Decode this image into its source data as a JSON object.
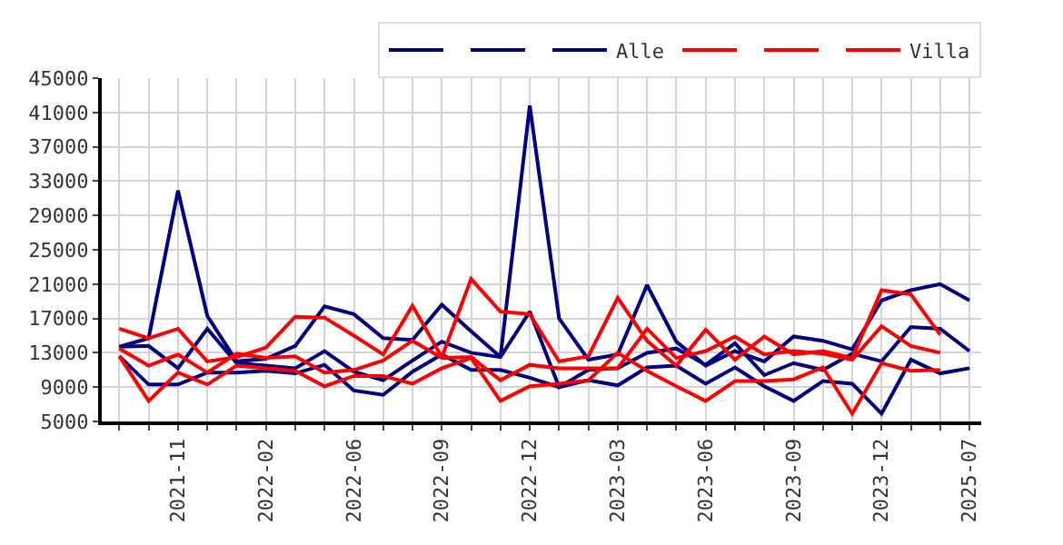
{
  "chart_data": {
    "type": "line",
    "categories": [
      null,
      null,
      "2021-11",
      null,
      null,
      "2022-02",
      null,
      null,
      "2022-06",
      null,
      null,
      "2022-09",
      null,
      null,
      "2022-12",
      null,
      null,
      "2023-03",
      null,
      null,
      "2023-06",
      null,
      null,
      "2023-09",
      null,
      null,
      "2023-12",
      null,
      null,
      "2025-07"
    ],
    "series": [
      {
        "color": "#000080",
        "values": [
          13700,
          14700,
          31900,
          17300,
          12000,
          12300,
          13800,
          18400,
          17500,
          14700,
          14500,
          18600,
          15500,
          12500,
          41800,
          17000,
          12200,
          12800,
          20900,
          14300,
          11500,
          13200,
          12000,
          14900,
          14400,
          13400,
          19100,
          20300,
          21000,
          19100
        ]
      },
      {
        "color": "#000080",
        "values": [
          13700,
          13800,
          11200,
          15800,
          11800,
          11500,
          11200,
          13200,
          10800,
          9800,
          12100,
          14300,
          13000,
          12500,
          17800,
          9000,
          11000,
          11200,
          13000,
          13500,
          11600,
          14100,
          10400,
          11800,
          11000,
          12900,
          12000,
          16000,
          15800,
          13200
        ]
      },
      {
        "name": "Alle",
        "color": "#000080",
        "values": [
          12600,
          9300,
          9300,
          10700,
          10700,
          10900,
          10600,
          11600,
          8600,
          8100,
          10800,
          12800,
          11000,
          11000,
          10100,
          9000,
          9800,
          9200,
          11300,
          11500,
          9400,
          11300,
          9100,
          7400,
          9700,
          9400,
          5900,
          12200,
          10600,
          11200
        ]
      },
      {
        "color": "#ff0000",
        "values": [
          15800,
          14700,
          15800,
          12000,
          12500,
          13600,
          17200,
          17100,
          15000,
          12800,
          18500,
          12500,
          21600,
          17800,
          17500,
          12000,
          12600,
          19400,
          14400,
          11500,
          15700,
          12200,
          14900,
          12800,
          13200,
          12400,
          20300,
          19800,
          15100,
          null
        ]
      },
      {
        "color": "#ff0000",
        "values": [
          13500,
          11500,
          12800,
          10700,
          12900,
          12400,
          12600,
          10700,
          11000,
          12100,
          14400,
          12400,
          12500,
          9800,
          11600,
          11200,
          11200,
          11200,
          15800,
          12400,
          13200,
          14900,
          12800,
          13200,
          12900,
          12200,
          16100,
          13800,
          13000,
          null
        ]
      },
      {
        "name": "Villa",
        "color": "#ff0000",
        "values": [
          12600,
          7400,
          10700,
          9300,
          11500,
          11200,
          10900,
          9100,
          10300,
          10300,
          9400,
          11200,
          12400,
          7400,
          9100,
          9400,
          9800,
          13000,
          10900,
          9100,
          7400,
          9700,
          9700,
          9900,
          11300,
          5900,
          11800,
          10900,
          11000,
          null
        ]
      }
    ],
    "ylim": [
      5000,
      45000
    ],
    "yticks": [
      5000,
      9000,
      13000,
      17000,
      21000,
      25000,
      29000,
      33000,
      37000,
      41000,
      45000
    ],
    "grid": true,
    "legend": "top right",
    "marker": "none",
    "line_style": "solid"
  }
}
